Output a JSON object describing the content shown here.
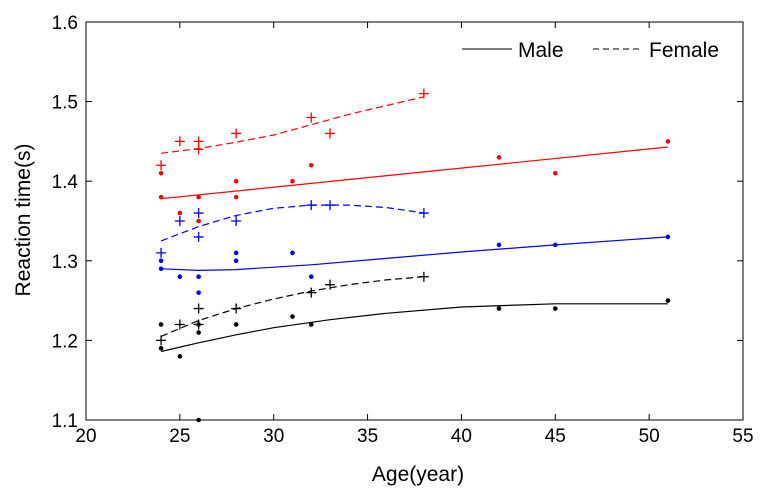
{
  "chart_data": {
    "type": "scatter",
    "title": "",
    "xlabel": "Age(year)",
    "ylabel": "Reaction time(s)",
    "xlim": [
      20,
      55
    ],
    "ylim": [
      1.1,
      1.6
    ],
    "grid": false,
    "legend_position": "top-right",
    "x_ticks": [
      "20",
      "25",
      "30",
      "35",
      "40",
      "45",
      "50",
      "55"
    ],
    "y_ticks": [
      "1.1",
      "1.2",
      "1.3",
      "1.4",
      "1.5",
      "1.6"
    ],
    "legend": [
      {
        "label": "Male",
        "style": "solid"
      },
      {
        "label": "Female",
        "style": "dashed"
      }
    ],
    "series": [
      {
        "name": "Male (red)",
        "color": "#ff0000",
        "marker": "dot",
        "line": "solid",
        "points": [
          [
            24,
            1.41
          ],
          [
            24,
            1.38
          ],
          [
            25,
            1.36
          ],
          [
            26,
            1.38
          ],
          [
            26,
            1.35
          ],
          [
            28,
            1.4
          ],
          [
            28,
            1.38
          ],
          [
            31,
            1.4
          ],
          [
            32,
            1.42
          ],
          [
            42,
            1.43
          ],
          [
            45,
            1.41
          ],
          [
            51,
            1.45
          ]
        ],
        "fit": [
          [
            24,
            1.378
          ],
          [
            51,
            1.443
          ]
        ]
      },
      {
        "name": "Female (red)",
        "color": "#ff0000",
        "marker": "plus",
        "line": "dashed",
        "points": [
          [
            24,
            1.42
          ],
          [
            25,
            1.45
          ],
          [
            26,
            1.45
          ],
          [
            26,
            1.44
          ],
          [
            28,
            1.46
          ],
          [
            32,
            1.48
          ],
          [
            33,
            1.46
          ],
          [
            38,
            1.51
          ]
        ],
        "fit": [
          [
            24,
            1.435
          ],
          [
            26,
            1.441
          ],
          [
            28,
            1.449
          ],
          [
            30,
            1.458
          ],
          [
            32,
            1.471
          ],
          [
            34,
            1.484
          ],
          [
            36,
            1.495
          ],
          [
            38,
            1.506
          ]
        ]
      },
      {
        "name": "Male (blue)",
        "color": "#0000ff",
        "marker": "dot",
        "line": "solid",
        "points": [
          [
            24,
            1.3
          ],
          [
            24,
            1.29
          ],
          [
            25,
            1.28
          ],
          [
            26,
            1.28
          ],
          [
            26,
            1.26
          ],
          [
            28,
            1.31
          ],
          [
            28,
            1.3
          ],
          [
            31,
            1.31
          ],
          [
            32,
            1.28
          ],
          [
            42,
            1.32
          ],
          [
            45,
            1.32
          ],
          [
            51,
            1.33
          ]
        ],
        "fit": [
          [
            24,
            1.29
          ],
          [
            26,
            1.288
          ],
          [
            28,
            1.289
          ],
          [
            30,
            1.292
          ],
          [
            32,
            1.295
          ],
          [
            36,
            1.303
          ],
          [
            40,
            1.311
          ],
          [
            45,
            1.32
          ],
          [
            51,
            1.33
          ]
        ]
      },
      {
        "name": "Female (blue)",
        "color": "#0000ff",
        "marker": "plus",
        "line": "dashed",
        "points": [
          [
            24,
            1.31
          ],
          [
            25,
            1.35
          ],
          [
            26,
            1.36
          ],
          [
            26,
            1.33
          ],
          [
            28,
            1.35
          ],
          [
            32,
            1.37
          ],
          [
            33,
            1.37
          ],
          [
            38,
            1.36
          ]
        ],
        "fit": [
          [
            24,
            1.325
          ],
          [
            26,
            1.343
          ],
          [
            28,
            1.357
          ],
          [
            30,
            1.366
          ],
          [
            32,
            1.37
          ],
          [
            34,
            1.37
          ],
          [
            36,
            1.367
          ],
          [
            38,
            1.36
          ]
        ]
      },
      {
        "name": "Male (black)",
        "color": "#000000",
        "marker": "dot",
        "line": "solid",
        "points": [
          [
            24,
            1.22
          ],
          [
            24,
            1.19
          ],
          [
            25,
            1.18
          ],
          [
            26,
            1.22
          ],
          [
            26,
            1.21
          ],
          [
            26,
            1.1
          ],
          [
            28,
            1.22
          ],
          [
            31,
            1.23
          ],
          [
            32,
            1.22
          ],
          [
            42,
            1.24
          ],
          [
            45,
            1.24
          ],
          [
            51,
            1.25
          ]
        ],
        "fit": [
          [
            24,
            1.186
          ],
          [
            26,
            1.197
          ],
          [
            28,
            1.207
          ],
          [
            30,
            1.216
          ],
          [
            33,
            1.226
          ],
          [
            36,
            1.234
          ],
          [
            40,
            1.242
          ],
          [
            45,
            1.246
          ],
          [
            51,
            1.246
          ]
        ]
      },
      {
        "name": "Female (black)",
        "color": "#000000",
        "marker": "plus",
        "line": "dashed",
        "points": [
          [
            24,
            1.2
          ],
          [
            25,
            1.22
          ],
          [
            26,
            1.24
          ],
          [
            26,
            1.22
          ],
          [
            28,
            1.24
          ],
          [
            32,
            1.26
          ],
          [
            33,
            1.27
          ],
          [
            38,
            1.28
          ]
        ],
        "fit": [
          [
            24,
            1.205
          ],
          [
            26,
            1.225
          ],
          [
            28,
            1.24
          ],
          [
            30,
            1.252
          ],
          [
            32,
            1.262
          ],
          [
            34,
            1.27
          ],
          [
            36,
            1.276
          ],
          [
            38,
            1.28
          ]
        ]
      }
    ]
  }
}
